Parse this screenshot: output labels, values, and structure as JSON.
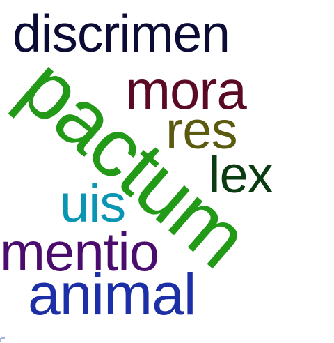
{
  "cloud": {
    "words": [
      {
        "key": "discrimen",
        "text": "discrimen",
        "color": "#0b0b35"
      },
      {
        "key": "pactum",
        "text": "pactum",
        "color": "#239a17"
      },
      {
        "key": "mora",
        "text": "mora",
        "color": "#5a0a25"
      },
      {
        "key": "res",
        "text": "res",
        "color": "#5b5a0f"
      },
      {
        "key": "lex",
        "text": "lex",
        "color": "#0b3b10"
      },
      {
        "key": "uis",
        "text": "uis",
        "color": "#0a95b3"
      },
      {
        "key": "mentio",
        "text": "mentio",
        "color": "#4a0c6d"
      },
      {
        "key": "animal",
        "text": "animal",
        "color": "#1c2fa7"
      }
    ]
  }
}
